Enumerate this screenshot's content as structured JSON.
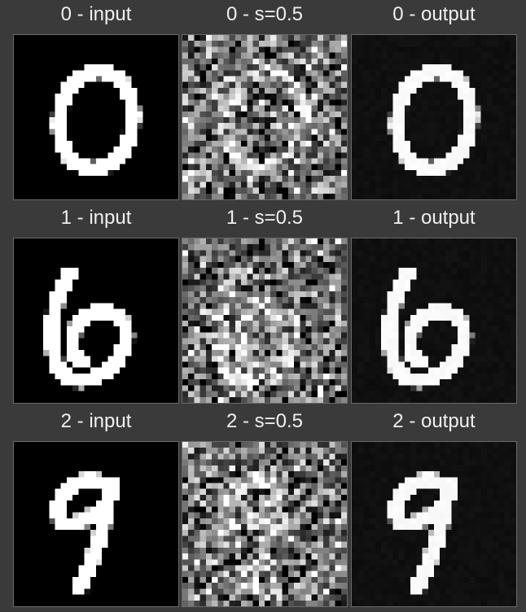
{
  "panels": [
    {
      "row": 0,
      "col": 0,
      "title": "0 - input",
      "kind": "input",
      "digit": "0"
    },
    {
      "row": 0,
      "col": 1,
      "title": "0 - s=0.5",
      "kind": "noisy",
      "digit": "0"
    },
    {
      "row": 0,
      "col": 2,
      "title": "0 - output",
      "kind": "output",
      "digit": "0"
    },
    {
      "row": 1,
      "col": 0,
      "title": "1 - input",
      "kind": "input",
      "digit": "6"
    },
    {
      "row": 1,
      "col": 1,
      "title": "1 - s=0.5",
      "kind": "noisy",
      "digit": "6"
    },
    {
      "row": 1,
      "col": 2,
      "title": "1 - output",
      "kind": "output",
      "digit": "6"
    },
    {
      "row": 2,
      "col": 0,
      "title": "2 - input",
      "kind": "input",
      "digit": "9"
    },
    {
      "row": 2,
      "col": 1,
      "title": "2 - s=0.5",
      "kind": "noisy",
      "digit": "9"
    },
    {
      "row": 2,
      "col": 2,
      "title": "2 - output",
      "kind": "output",
      "digit": "9"
    }
  ]
}
